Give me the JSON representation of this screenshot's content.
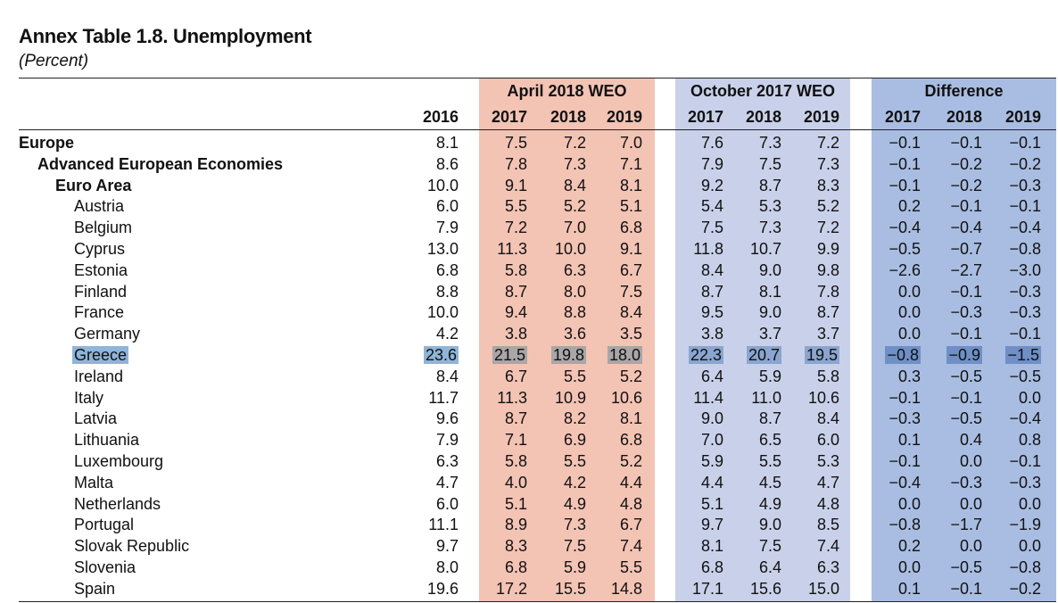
{
  "header": {
    "title": "Annex Table 1.8. Unemployment",
    "subtitle": "(Percent)"
  },
  "groups": {
    "april": "April 2018 WEO",
    "october": "October 2017 WEO",
    "difference": "Difference"
  },
  "columns": {
    "base": "2016",
    "april": [
      "2017",
      "2018",
      "2019"
    ],
    "october": [
      "2017",
      "2018",
      "2019"
    ],
    "difference": [
      "2017",
      "2018",
      "2019"
    ]
  },
  "rows": [
    {
      "label": "Europe",
      "level": 0,
      "values": [
        "8.1",
        "7.5",
        "7.2",
        "7.0",
        "7.6",
        "7.3",
        "7.2",
        "−0.1",
        "−0.1",
        "−0.1"
      ]
    },
    {
      "label": "Advanced European Economies",
      "level": 1,
      "values": [
        "8.6",
        "7.8",
        "7.3",
        "7.1",
        "7.9",
        "7.5",
        "7.3",
        "−0.1",
        "−0.2",
        "−0.2"
      ]
    },
    {
      "label": "Euro Area",
      "level": 2,
      "values": [
        "10.0",
        "9.1",
        "8.4",
        "8.1",
        "9.2",
        "8.7",
        "8.3",
        "−0.1",
        "−0.2",
        "−0.3"
      ]
    },
    {
      "label": "Austria",
      "level": 3,
      "values": [
        "6.0",
        "5.5",
        "5.2",
        "5.1",
        "5.4",
        "5.3",
        "5.2",
        "0.2",
        "−0.1",
        "−0.1"
      ]
    },
    {
      "label": "Belgium",
      "level": 3,
      "values": [
        "7.9",
        "7.2",
        "7.0",
        "6.8",
        "7.5",
        "7.3",
        "7.2",
        "−0.4",
        "−0.4",
        "−0.4"
      ]
    },
    {
      "label": "Cyprus",
      "level": 3,
      "values": [
        "13.0",
        "11.3",
        "10.0",
        "9.1",
        "11.8",
        "10.7",
        "9.9",
        "−0.5",
        "−0.7",
        "−0.8"
      ]
    },
    {
      "label": "Estonia",
      "level": 3,
      "values": [
        "6.8",
        "5.8",
        "6.3",
        "6.7",
        "8.4",
        "9.0",
        "9.8",
        "−2.6",
        "−2.7",
        "−3.0"
      ]
    },
    {
      "label": "Finland",
      "level": 3,
      "values": [
        "8.8",
        "8.7",
        "8.0",
        "7.5",
        "8.7",
        "8.1",
        "7.8",
        "0.0",
        "−0.1",
        "−0.3"
      ]
    },
    {
      "label": "France",
      "level": 3,
      "values": [
        "10.0",
        "9.4",
        "8.8",
        "8.4",
        "9.5",
        "9.0",
        "8.7",
        "0.0",
        "−0.3",
        "−0.3"
      ]
    },
    {
      "label": "Germany",
      "level": 3,
      "values": [
        "4.2",
        "3.8",
        "3.6",
        "3.5",
        "3.8",
        "3.7",
        "3.7",
        "0.0",
        "−0.1",
        "−0.1"
      ]
    },
    {
      "label": "Greece",
      "level": 3,
      "highlight": true,
      "values": [
        "23.6",
        "21.5",
        "19.8",
        "18.0",
        "22.3",
        "20.7",
        "19.5",
        "−0.8",
        "−0.9",
        "−1.5"
      ]
    },
    {
      "label": "Ireland",
      "level": 3,
      "values": [
        "8.4",
        "6.7",
        "5.5",
        "5.2",
        "6.4",
        "5.9",
        "5.8",
        "0.3",
        "−0.5",
        "−0.5"
      ]
    },
    {
      "label": "Italy",
      "level": 3,
      "values": [
        "11.7",
        "11.3",
        "10.9",
        "10.6",
        "11.4",
        "11.0",
        "10.6",
        "−0.1",
        "−0.1",
        "0.0"
      ]
    },
    {
      "label": "Latvia",
      "level": 3,
      "values": [
        "9.6",
        "8.7",
        "8.2",
        "8.1",
        "9.0",
        "8.7",
        "8.4",
        "−0.3",
        "−0.5",
        "−0.4"
      ]
    },
    {
      "label": "Lithuania",
      "level": 3,
      "values": [
        "7.9",
        "7.1",
        "6.9",
        "6.8",
        "7.0",
        "6.5",
        "6.0",
        "0.1",
        "0.4",
        "0.8"
      ]
    },
    {
      "label": "Luxembourg",
      "level": 3,
      "values": [
        "6.3",
        "5.8",
        "5.5",
        "5.2",
        "5.9",
        "5.5",
        "5.3",
        "−0.1",
        "0.0",
        "−0.1"
      ]
    },
    {
      "label": "Malta",
      "level": 3,
      "values": [
        "4.7",
        "4.0",
        "4.2",
        "4.4",
        "4.4",
        "4.5",
        "4.7",
        "−0.4",
        "−0.3",
        "−0.3"
      ]
    },
    {
      "label": "Netherlands",
      "level": 3,
      "values": [
        "6.0",
        "5.1",
        "4.9",
        "4.8",
        "5.1",
        "4.9",
        "4.8",
        "0.0",
        "0.0",
        "0.0"
      ]
    },
    {
      "label": "Portugal",
      "level": 3,
      "values": [
        "11.1",
        "8.9",
        "7.3",
        "6.7",
        "9.7",
        "9.0",
        "8.5",
        "−0.8",
        "−1.7",
        "−1.9"
      ]
    },
    {
      "label": "Slovak Republic",
      "level": 3,
      "values": [
        "9.7",
        "8.3",
        "7.5",
        "7.4",
        "8.1",
        "7.5",
        "7.4",
        "0.2",
        "0.0",
        "0.0"
      ]
    },
    {
      "label": "Slovenia",
      "level": 3,
      "values": [
        "8.0",
        "6.8",
        "5.9",
        "5.5",
        "6.8",
        "6.4",
        "6.3",
        "0.0",
        "−0.5",
        "−0.8"
      ]
    },
    {
      "label": "Spain",
      "level": 3,
      "values": [
        "19.6",
        "17.2",
        "15.5",
        "14.8",
        "17.1",
        "15.6",
        "15.0",
        "0.1",
        "−0.1",
        "−0.2"
      ]
    }
  ]
}
